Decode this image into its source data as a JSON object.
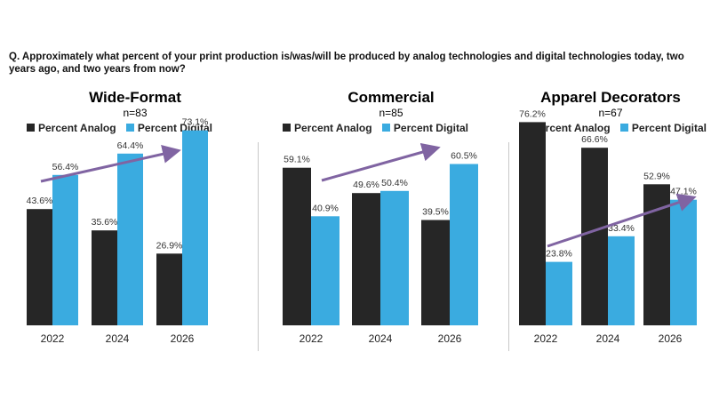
{
  "question": "Q. Approximately what percent of your print production is/was/will be produced by analog technologies and digital technologies today, two years ago, and two years from now?",
  "colors": {
    "analog": "#262626",
    "digital": "#3aabe0",
    "arrow": "#8064a2"
  },
  "chart_data": [
    {
      "type": "bar",
      "title": "Wide-Format",
      "subtitle": "n=83",
      "categories": [
        "2022",
        "2024",
        "2026"
      ],
      "series": [
        {
          "name": "Percent Analog",
          "values": [
            43.6,
            35.6,
            26.9
          ],
          "labels": [
            "43.6%",
            "35.6%",
            "26.9%"
          ]
        },
        {
          "name": "Percent Digital",
          "values": [
            56.4,
            64.4,
            73.1
          ],
          "labels": [
            "56.4%",
            "64.4%",
            "73.1%"
          ]
        }
      ],
      "ylim": [
        0,
        80
      ],
      "legend": "top",
      "grid": false
    },
    {
      "type": "bar",
      "title": "Commercial",
      "subtitle": "n=85",
      "categories": [
        "2022",
        "2024",
        "2026"
      ],
      "series": [
        {
          "name": "Percent Analog",
          "values": [
            59.1,
            49.6,
            39.5
          ],
          "labels": [
            "59.1%",
            "49.6%",
            "39.5%"
          ]
        },
        {
          "name": "Percent Digital",
          "values": [
            40.9,
            50.4,
            60.5
          ],
          "labels": [
            "40.9%",
            "50.4%",
            "60.5%"
          ]
        }
      ],
      "ylim": [
        0,
        80
      ],
      "legend": "top",
      "grid": false
    },
    {
      "type": "bar",
      "title": "Apparel Decorators",
      "subtitle": "n=67",
      "categories": [
        "2022",
        "2024",
        "2026"
      ],
      "series": [
        {
          "name": "Percent Analog",
          "values": [
            76.2,
            66.6,
            52.9
          ],
          "labels": [
            "76.2%",
            "66.6%",
            "52.9%"
          ]
        },
        {
          "name": "Percent Digital",
          "values": [
            23.8,
            33.4,
            47.1
          ],
          "labels": [
            "23.8%",
            "33.4%",
            "47.1%"
          ]
        }
      ],
      "ylim": [
        0,
        80
      ],
      "legend": "top",
      "grid": false
    }
  ]
}
